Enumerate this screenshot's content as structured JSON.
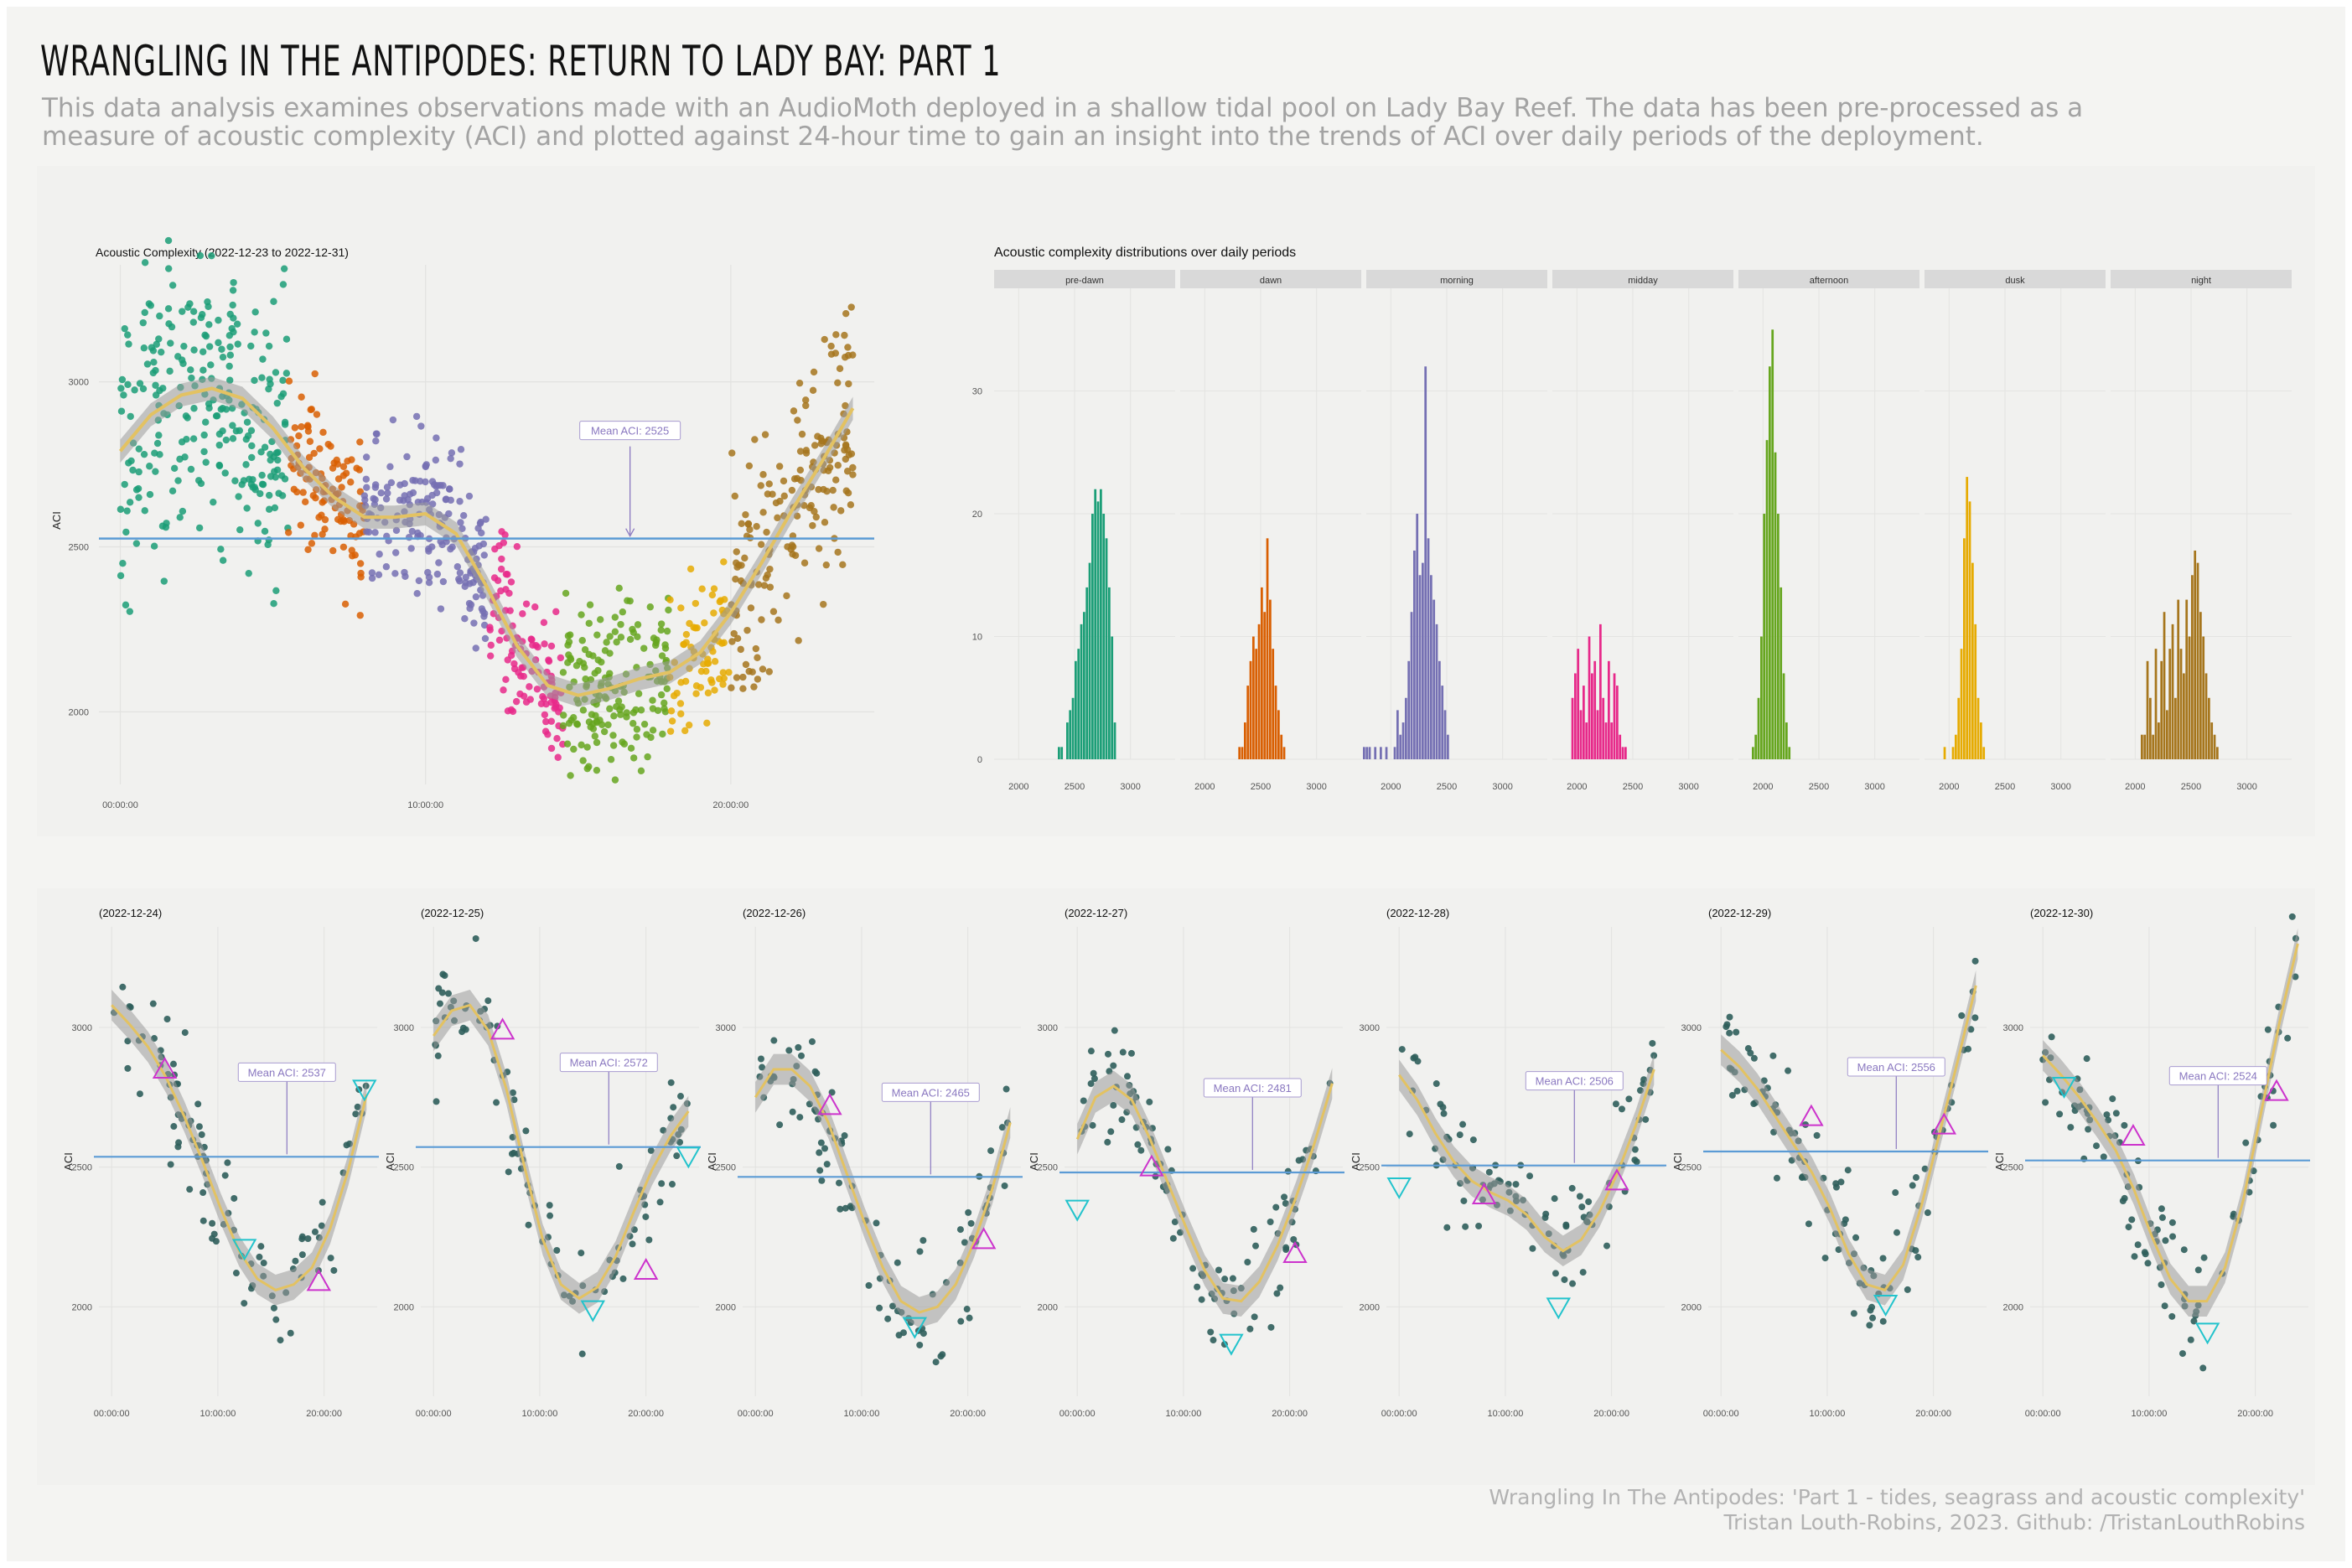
{
  "header": {
    "title": "WRANGLING IN THE ANTIPODES: RETURN TO LADY BAY: PART 1",
    "subtitle": "This data analysis examines observations made with an AudioMoth deployed in a shallow tidal pool on Lady Bay Reef. The data has been pre-processed as a measure of acoustic complexity (ACI) and plotted against 24-hour time to gain an insight into the trends of ACI over daily periods of the deployment."
  },
  "footer": {
    "line1": "Wrangling In The Antipodes: 'Part 1 - tides, seagrass and acoustic complexity'",
    "line2": "Tristan Louth-Robins, 2023. Github: /TristanLouthRobins"
  },
  "colors": {
    "background": "#f4f4f2",
    "mean_line": "#5b9bd5",
    "smooth_line": "#e3c262",
    "band": "#9a9a9a",
    "daily_points": "#2f5e5b",
    "peak_marker": "#cc33cc",
    "trough_marker": "#22c3cc",
    "periods": {
      "pre-dawn": "#1b9e77",
      "dawn": "#d95f02",
      "morning": "#7570b3",
      "midday": "#e7298a",
      "afternoon": "#66a61e",
      "dusk": "#e6ab02",
      "night": "#a6761d"
    }
  },
  "chart_data": [
    {
      "id": "main",
      "type": "scatter",
      "title": "Acoustic Complexity (2022-12-23 to 2022-12-31)",
      "xlabel": "",
      "ylabel": "ACI",
      "x_ticks": [
        "00:00:00",
        "10:00:00",
        "20:00:00"
      ],
      "x_tick_hours": [
        0,
        10,
        20
      ],
      "y_ticks": [
        2000,
        2500,
        3000
      ],
      "xlim": [
        -0.7,
        24.7
      ],
      "ylim": [
        1780,
        3380
      ],
      "mean": 2525,
      "mean_label": "Mean ACI:  2525",
      "smooth": {
        "hours": [
          0,
          1,
          2,
          3,
          4,
          5,
          6,
          7,
          8,
          9,
          10,
          11,
          12,
          13,
          14,
          15,
          16,
          17,
          18,
          19,
          20,
          21,
          22,
          23,
          24
        ],
        "aci": [
          2790,
          2900,
          2960,
          2980,
          2950,
          2860,
          2740,
          2650,
          2590,
          2590,
          2600,
          2540,
          2380,
          2200,
          2080,
          2050,
          2070,
          2100,
          2120,
          2180,
          2300,
          2450,
          2610,
          2760,
          2920
        ]
      },
      "periods": [
        {
          "name": "pre-dawn",
          "start": 0,
          "end": 5.5,
          "n": 260
        },
        {
          "name": "dawn",
          "start": 5.5,
          "end": 8,
          "n": 110
        },
        {
          "name": "morning",
          "start": 8,
          "end": 12,
          "n": 180
        },
        {
          "name": "midday",
          "start": 12,
          "end": 14.5,
          "n": 110
        },
        {
          "name": "afternoon",
          "start": 14.5,
          "end": 18,
          "n": 170
        },
        {
          "name": "dusk",
          "start": 18,
          "end": 20,
          "n": 70
        },
        {
          "name": "night",
          "start": 20,
          "end": 24,
          "n": 180
        }
      ],
      "grid": true
    },
    {
      "id": "distributions",
      "type": "bar",
      "title": "Acoustic complexity distributions over daily periods",
      "y_ticks": [
        0,
        10,
        20,
        30
      ],
      "ylim": [
        0,
        37
      ],
      "x_ticks": [
        2000,
        2500,
        3000
      ],
      "xlim": [
        1780,
        3400
      ],
      "bin_width": 25,
      "panels": [
        {
          "name": "pre-dawn",
          "bin_start": 2350,
          "counts": [
            1,
            1,
            0,
            3,
            4,
            5,
            8,
            9,
            11,
            12,
            14,
            16,
            20,
            22,
            21,
            22,
            20,
            18,
            14,
            10,
            3
          ]
        },
        {
          "name": "dawn",
          "bin_start": 2300,
          "counts": [
            1,
            1,
            3,
            6,
            8,
            10,
            9,
            11,
            14,
            12,
            18,
            13,
            9,
            6,
            4,
            2,
            1
          ]
        },
        {
          "name": "morning",
          "bin_start": 1750,
          "counts": [
            1,
            1,
            1,
            0,
            1,
            0,
            1,
            0,
            1,
            0,
            0,
            1,
            4,
            2,
            3,
            5,
            8,
            12,
            17,
            20,
            15,
            16,
            32,
            18,
            15,
            13,
            11,
            8,
            6,
            4,
            2
          ]
        },
        {
          "name": "midday",
          "bin_start": 1950,
          "counts": [
            5,
            7,
            9,
            4,
            6,
            3,
            10,
            7,
            8,
            4,
            11,
            5,
            3,
            8,
            3,
            7,
            6,
            2,
            1,
            1
          ]
        },
        {
          "name": "afternoon",
          "bin_start": 1900,
          "counts": [
            1,
            2,
            5,
            10,
            20,
            26,
            32,
            35,
            25,
            20,
            14,
            7,
            3,
            1
          ]
        },
        {
          "name": "dusk",
          "bin_start": 1950,
          "counts": [
            1,
            0,
            0,
            1,
            2,
            5,
            9,
            18,
            23,
            21,
            16,
            11,
            5,
            3,
            1
          ]
        },
        {
          "name": "night",
          "bin_start": 2050,
          "counts": [
            2,
            2,
            8,
            5,
            2,
            9,
            3,
            8,
            12,
            4,
            9,
            11,
            5,
            13,
            9,
            7,
            13,
            10,
            15,
            17,
            16,
            12,
            10,
            7,
            5,
            3,
            2,
            1
          ]
        }
      ]
    },
    {
      "id": "daily",
      "type": "scatter",
      "xlabel": "",
      "ylabel": "ACI",
      "x_ticks": [
        "00:00:00",
        "10:00:00",
        "20:00:00"
      ],
      "x_tick_hours": [
        0,
        10,
        20
      ],
      "y_ticks": [
        2000,
        2500,
        3000
      ],
      "xlim": [
        -1.2,
        25
      ],
      "ylim": [
        1680,
        3360
      ],
      "panels": [
        {
          "title": "(2022-12-24)",
          "mean": 2537,
          "mean_label": "Mean ACI:  2537",
          "smooth": [
            3080,
            3010,
            2930,
            2820,
            2680,
            2520,
            2350,
            2200,
            2100,
            2060,
            2080,
            2140,
            2280,
            2490,
            2760
          ],
          "peaks": [
            [
              5,
              2850
            ],
            [
              19.5,
              2090
            ]
          ],
          "troughs": [
            [
              12.5,
              2210
            ],
            [
              23.8,
              2780
            ]
          ]
        },
        {
          "title": "(2022-12-25)",
          "mean": 2572,
          "mean_label": "Mean ACI:  2572",
          "smooth": [
            2970,
            3060,
            3080,
            2990,
            2780,
            2500,
            2240,
            2080,
            2030,
            2070,
            2180,
            2340,
            2490,
            2610,
            2700
          ],
          "peaks": [
            [
              6.5,
              2990
            ],
            [
              20,
              2130
            ]
          ],
          "troughs": [
            [
              15,
              1990
            ],
            [
              24,
              2540
            ]
          ]
        },
        {
          "title": "(2022-12-26)",
          "mean": 2465,
          "mean_label": "Mean ACI:  2465",
          "smooth": [
            2750,
            2850,
            2850,
            2790,
            2660,
            2480,
            2300,
            2140,
            2020,
            1980,
            2000,
            2080,
            2230,
            2420,
            2660
          ],
          "peaks": [
            [
              7,
              2720
            ],
            [
              21.5,
              2240
            ]
          ],
          "troughs": [
            [
              15,
              1930
            ]
          ]
        },
        {
          "title": "(2022-12-27)",
          "mean": 2481,
          "mean_label": "Mean ACI:  2481",
          "smooth": [
            2600,
            2750,
            2790,
            2740,
            2600,
            2440,
            2280,
            2130,
            2030,
            2020,
            2090,
            2220,
            2390,
            2580,
            2800
          ],
          "peaks": [
            [
              7,
              2500
            ],
            [
              20.5,
              2190
            ]
          ],
          "troughs": [
            [
              0,
              2350
            ],
            [
              14.5,
              1870
            ]
          ]
        },
        {
          "title": "(2022-12-28)",
          "mean": 2506,
          "mean_label": "Mean ACI:  2506",
          "smooth": [
            2830,
            2740,
            2620,
            2520,
            2450,
            2410,
            2380,
            2330,
            2250,
            2200,
            2240,
            2340,
            2480,
            2650,
            2850
          ],
          "peaks": [
            [
              8,
              2400
            ],
            [
              20.5,
              2450
            ]
          ],
          "troughs": [
            [
              0,
              2430
            ],
            [
              15,
              2000
            ]
          ]
        },
        {
          "title": "(2022-12-29)",
          "mean": 2556,
          "mean_label": "Mean ACI:  2556",
          "smooth": [
            2920,
            2860,
            2780,
            2680,
            2580,
            2480,
            2350,
            2190,
            2080,
            2060,
            2150,
            2360,
            2620,
            2880,
            3150
          ],
          "peaks": [
            [
              8.5,
              2680
            ],
            [
              21,
              2650
            ]
          ],
          "troughs": [
            [
              15.5,
              2010
            ]
          ]
        },
        {
          "title": "(2022-12-30)",
          "mean": 2524,
          "mean_label": "Mean ACI:  2524",
          "smooth": [
            2900,
            2830,
            2750,
            2660,
            2560,
            2420,
            2250,
            2100,
            2020,
            2020,
            2140,
            2380,
            2700,
            3020,
            3300
          ],
          "peaks": [
            [
              8.5,
              2610
            ],
            [
              22,
              2770
            ]
          ],
          "troughs": [
            [
              2,
              2790
            ],
            [
              15.5,
              1910
            ]
          ]
        }
      ]
    }
  ]
}
